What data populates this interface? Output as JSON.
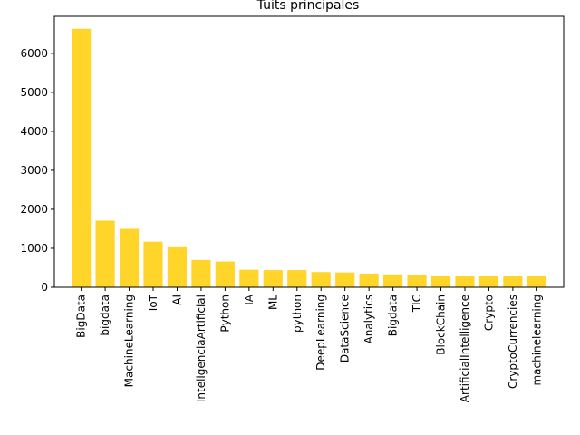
{
  "chart_data": {
    "type": "bar",
    "title": "Tuits principales",
    "xlabel": "",
    "ylabel": "",
    "ylim": [
      0,
      6950
    ],
    "yticks": [
      0,
      1000,
      2000,
      3000,
      4000,
      5000,
      6000
    ],
    "categories": [
      "BigData",
      "bigdata",
      "MachineLearning",
      "IoT",
      "AI",
      "InteligenciaArtificial",
      "Python",
      "IA",
      "ML",
      "python",
      "DeepLearning",
      "DataScience",
      "Analytics",
      "Bigdata",
      "TIC",
      "BlockChain",
      "ArtificialIntelligence",
      "Crypto",
      "CryptoCurrencies",
      "machinelearning"
    ],
    "values": [
      6630,
      1710,
      1500,
      1170,
      1050,
      700,
      660,
      450,
      440,
      440,
      390,
      380,
      350,
      330,
      310,
      280,
      280,
      280,
      280,
      280
    ],
    "bar_color": "#ffd52a",
    "grid": false,
    "legend": "none"
  }
}
